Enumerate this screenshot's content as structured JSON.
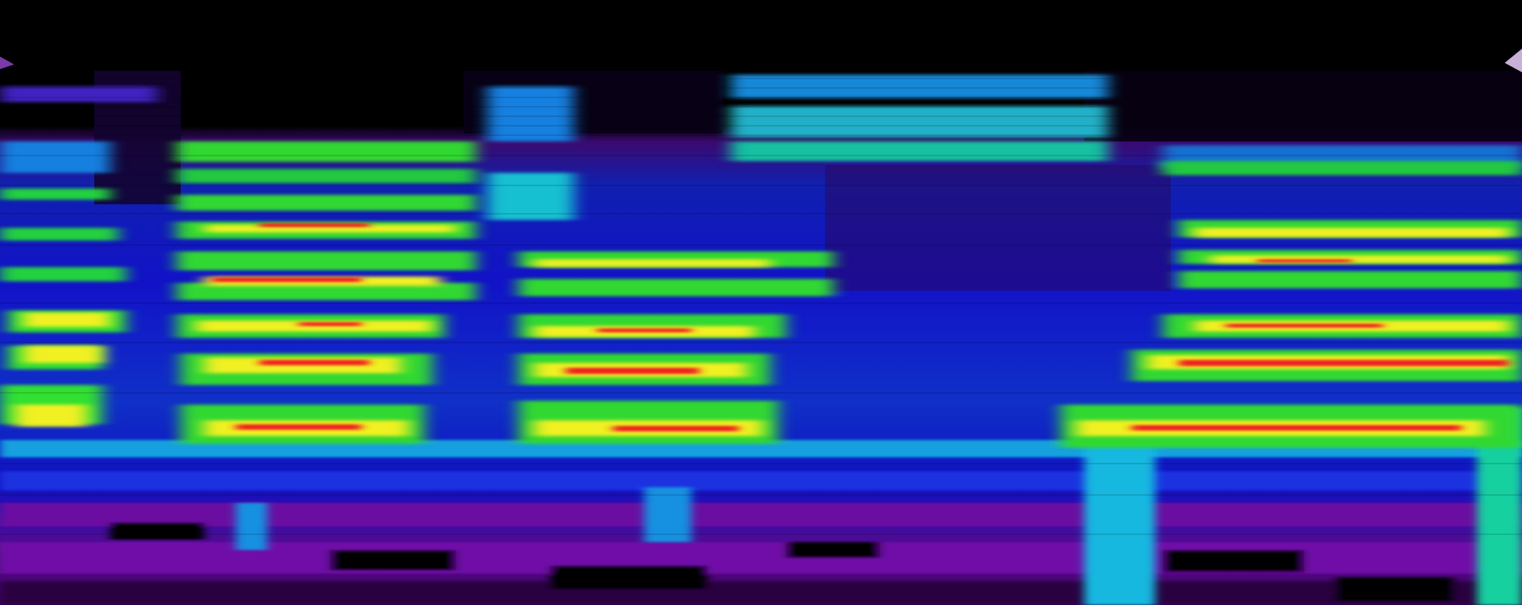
{
  "image": {
    "kind": "spectrogram",
    "colormap": [
      "#000000",
      "#5a0a8c",
      "#1414d2",
      "#14b4e6",
      "#14e614",
      "#f0f014",
      "#f02814"
    ],
    "background": "#000000"
  }
}
